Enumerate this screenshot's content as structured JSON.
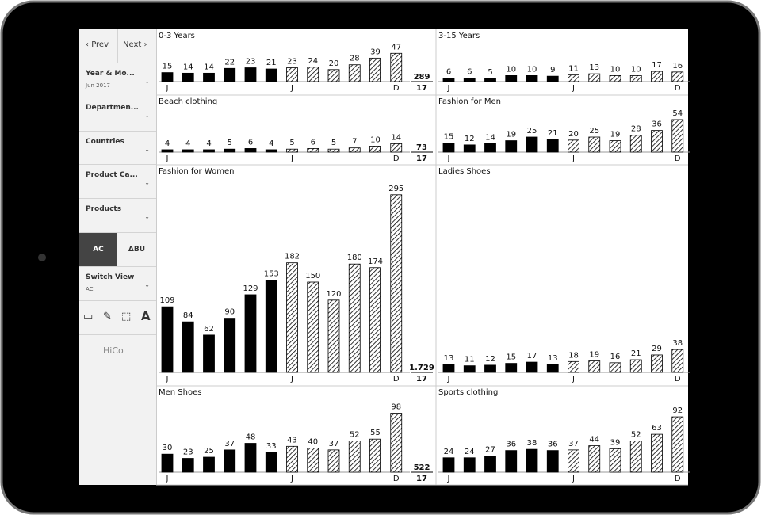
{
  "sidebar": {
    "prev": "Prev",
    "next": "Next",
    "filters": [
      {
        "label": "Year & Mo...",
        "value": "Jun 2017"
      },
      {
        "label": "Departmen..."
      },
      {
        "label": "Countries"
      },
      {
        "label": "Product Ca..."
      },
      {
        "label": "Products"
      }
    ],
    "toggle": [
      "AC",
      "ΔBU"
    ],
    "switch_view": {
      "label": "Switch View",
      "value": "AC"
    },
    "logo": "HiCo"
  },
  "chart_data": [
    {
      "type": "bar",
      "title": "0-3 Years",
      "categories": [
        "J",
        null,
        null,
        null,
        null,
        null,
        "J",
        null,
        null,
        null,
        null,
        "D"
      ],
      "values": [
        15,
        14,
        14,
        22,
        23,
        21,
        23,
        24,
        20,
        28,
        39,
        47
      ],
      "forecast_start": 6,
      "color": "#000000",
      "total": 289,
      "year_label": "17"
    },
    {
      "type": "bar",
      "title": "3-15 Years",
      "categories": [
        "J",
        null,
        null,
        null,
        null,
        null,
        "J",
        null,
        null,
        null,
        null,
        "D"
      ],
      "values": [
        6,
        6,
        5,
        10,
        10,
        9,
        11,
        13,
        10,
        10,
        17,
        16
      ],
      "forecast_start": 6,
      "color": "#000000"
    },
    {
      "type": "bar",
      "title": "Beach clothing",
      "categories": [
        "J",
        null,
        null,
        null,
        null,
        null,
        "J",
        null,
        null,
        null,
        null,
        "D"
      ],
      "values": [
        4,
        4,
        4,
        5,
        6,
        4,
        5,
        6,
        5,
        7,
        10,
        14
      ],
      "forecast_start": 6,
      "color": "#000000",
      "total": 73,
      "year_label": "17"
    },
    {
      "type": "bar",
      "title": "Fashion for Men",
      "categories": [
        "J",
        null,
        null,
        null,
        null,
        null,
        "J",
        null,
        null,
        null,
        null,
        "D"
      ],
      "values": [
        15,
        12,
        14,
        19,
        25,
        21,
        20,
        25,
        19,
        28,
        36,
        54
      ],
      "forecast_start": 6,
      "color": "#000000"
    },
    {
      "type": "bar",
      "title": "Fashion for Women",
      "categories": [
        "J",
        null,
        null,
        null,
        null,
        null,
        "J",
        null,
        null,
        null,
        null,
        "D"
      ],
      "values": [
        109,
        84,
        62,
        90,
        129,
        153,
        182,
        150,
        120,
        180,
        174,
        295
      ],
      "forecast_start": 6,
      "color": "#000000",
      "total": {
        "value": 1729,
        "label": "1.729"
      },
      "year_label": "17"
    },
    {
      "type": "bar",
      "title": "Ladies Shoes",
      "categories": [
        "J",
        null,
        null,
        null,
        null,
        null,
        "J",
        null,
        null,
        null,
        null,
        "D"
      ],
      "values": [
        13,
        11,
        12,
        15,
        17,
        13,
        18,
        19,
        16,
        21,
        29,
        38
      ],
      "forecast_start": 6,
      "color": "#000000"
    },
    {
      "type": "bar",
      "title": "Men Shoes",
      "categories": [
        "J",
        null,
        null,
        null,
        null,
        null,
        "J",
        null,
        null,
        null,
        null,
        "D"
      ],
      "values": [
        30,
        23,
        25,
        37,
        48,
        33,
        43,
        40,
        37,
        52,
        55,
        98
      ],
      "forecast_start": 6,
      "color": "#000000",
      "total": 522,
      "year_label": "17"
    },
    {
      "type": "bar",
      "title": "Sports clothing",
      "categories": [
        "J",
        null,
        null,
        null,
        null,
        null,
        "J",
        null,
        null,
        null,
        null,
        "D"
      ],
      "values": [
        24,
        24,
        27,
        36,
        38,
        36,
        37,
        44,
        39,
        52,
        63,
        92
      ],
      "forecast_start": 6,
      "color": "#000000"
    }
  ]
}
